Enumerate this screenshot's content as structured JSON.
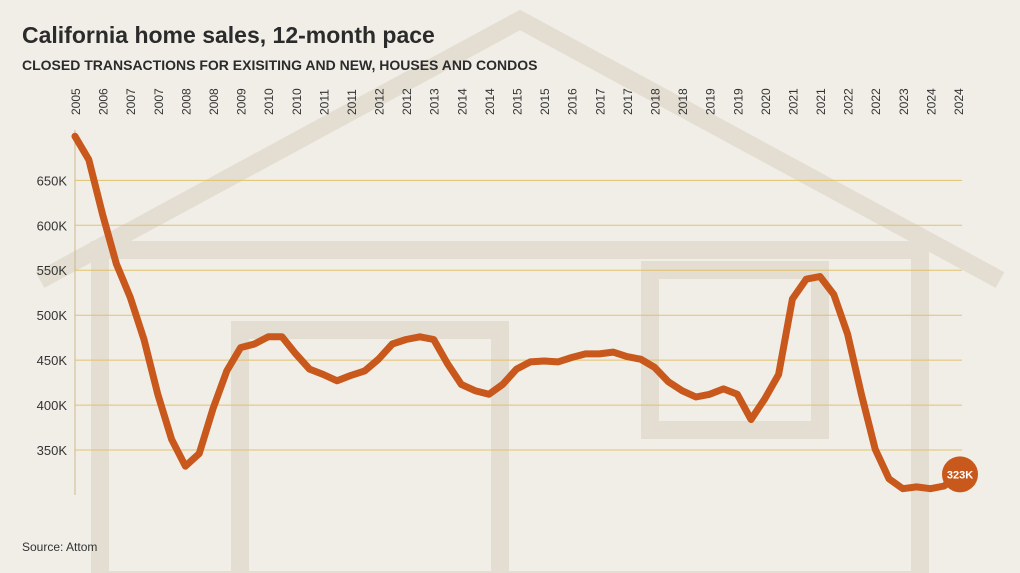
{
  "chart_data": {
    "type": "line",
    "title": "California home sales, 12-month pace",
    "subtitle": "CLOSED TRANSACTIONS FOR EXISITING AND NEW, HOUSES AND CONDOS",
    "source": "Source: Attom",
    "categories": [
      "2005",
      null,
      "2006",
      null,
      "2007",
      null,
      "2007",
      null,
      "2008",
      null,
      "2008",
      null,
      "2009",
      null,
      "2010",
      null,
      "2010",
      null,
      "2011",
      null,
      "2011",
      null,
      "2012",
      null,
      "2012",
      null,
      "2013",
      null,
      "2014",
      null,
      "2014",
      null,
      "2015",
      null,
      "2015",
      null,
      "2016",
      null,
      "2017",
      null,
      "2017",
      null,
      "2018",
      null,
      "2018",
      null,
      "2019",
      null,
      "2019",
      null,
      "2020",
      null,
      "2021",
      null,
      "2021",
      null,
      "2022",
      null,
      "2022",
      null,
      "2023",
      null,
      "2024",
      null,
      "2024"
    ],
    "values": [
      699000,
      673000,
      612000,
      557000,
      520000,
      473000,
      412000,
      362000,
      332000,
      346000,
      396000,
      438000,
      464000,
      468000,
      476000,
      476000,
      457000,
      440000,
      434000,
      427000,
      433000,
      438000,
      451000,
      468000,
      473000,
      476000,
      473000,
      446000,
      423000,
      416000,
      412000,
      423000,
      440000,
      448000,
      449000,
      448000,
      453000,
      457000,
      457000,
      459000,
      454000,
      451000,
      442000,
      426000,
      416000,
      409000,
      412000,
      418000,
      412000,
      384000,
      407000,
      434000,
      518000,
      540000,
      543000,
      523000,
      479000,
      412000,
      351000,
      318000,
      307000,
      309000,
      307000,
      310000,
      323000
    ],
    "value_labels": [
      null,
      null,
      null,
      null,
      null,
      null,
      null,
      null,
      null,
      null,
      null,
      null,
      null,
      null,
      null,
      null,
      null,
      null,
      null,
      null,
      null,
      null,
      null,
      null,
      null,
      null,
      null,
      null,
      null,
      null,
      null,
      null,
      null,
      null,
      null,
      null,
      null,
      null,
      null,
      null,
      null,
      null,
      null,
      null,
      null,
      null,
      null,
      null,
      null,
      null,
      null,
      null,
      null,
      null,
      null,
      null,
      null,
      null,
      null,
      null,
      null,
      null,
      null,
      null,
      "323K"
    ],
    "color": "#c8581b",
    "ylim": [
      300000,
      706000
    ],
    "yticks": [
      {
        "value": 350000,
        "label": "350K"
      },
      {
        "value": 400000,
        "label": "400K"
      },
      {
        "value": 450000,
        "label": "450K"
      },
      {
        "value": 500000,
        "label": "500K"
      },
      {
        "value": 550000,
        "label": "550K"
      },
      {
        "value": 600000,
        "label": "600K"
      },
      {
        "value": 650000,
        "label": "650K"
      }
    ],
    "grid": true
  }
}
